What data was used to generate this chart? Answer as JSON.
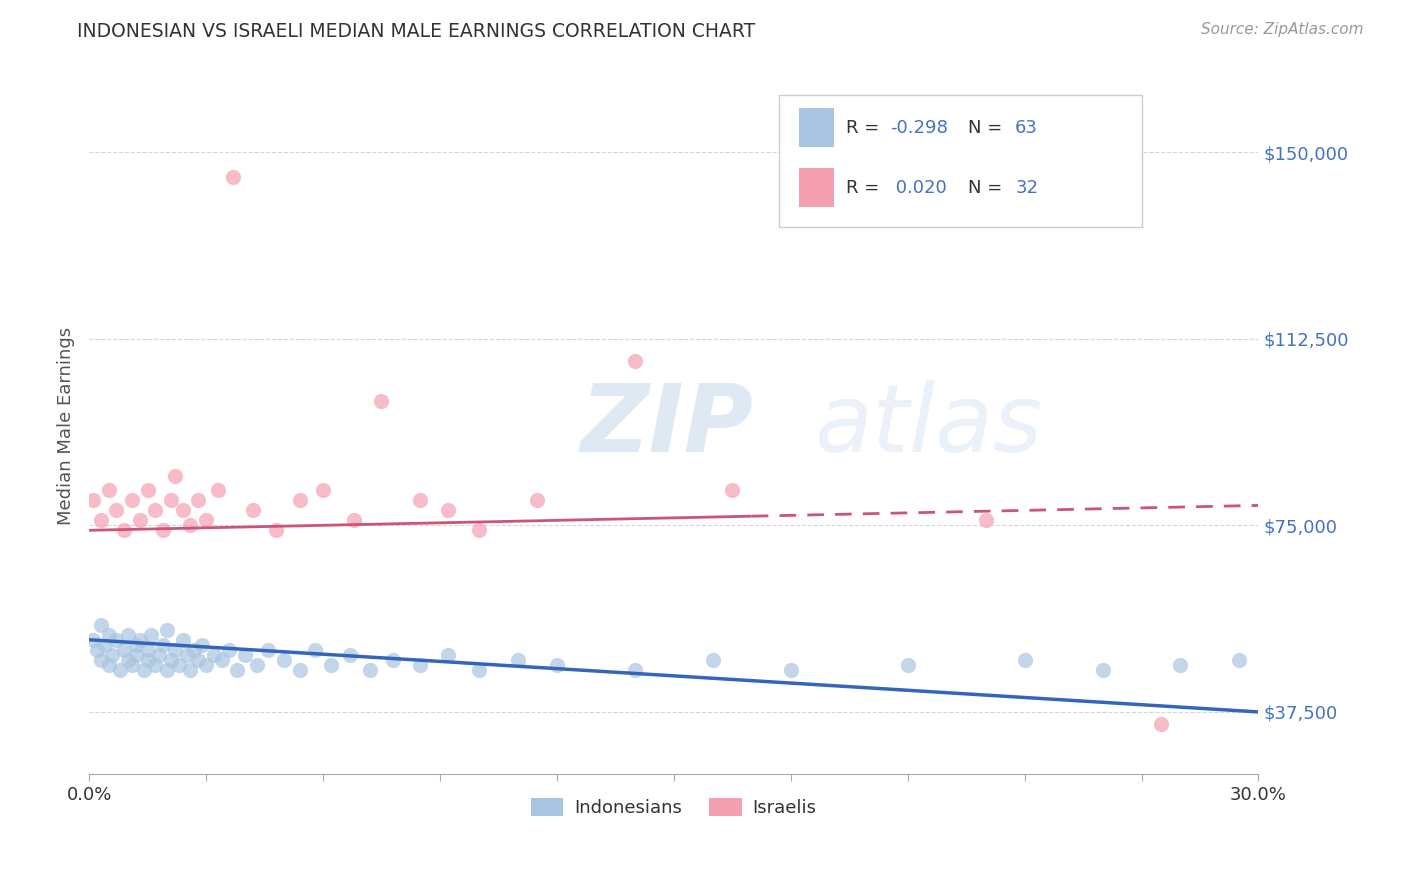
{
  "title": "INDONESIAN VS ISRAELI MEDIAN MALE EARNINGS CORRELATION CHART",
  "source": "Source: ZipAtlas.com",
  "ylabel": "Median Male Earnings",
  "xlim": [
    0.0,
    0.3
  ],
  "ylim": [
    25000,
    165000
  ],
  "yticks": [
    37500,
    75000,
    112500,
    150000
  ],
  "ytick_labels": [
    "$37,500",
    "$75,000",
    "$112,500",
    "$150,000"
  ],
  "xtick_positions": [
    0.0,
    0.03,
    0.06,
    0.09,
    0.12,
    0.15,
    0.18,
    0.21,
    0.24,
    0.27,
    0.3
  ],
  "xtick_labels_show": [
    "0.0%",
    "",
    "",
    "",
    "",
    "",
    "",
    "",
    "",
    "",
    "30.0%"
  ],
  "legend_r1_prefix": "R = ",
  "legend_r1_val": "-0.298",
  "legend_n1_prefix": "N = ",
  "legend_n1_val": "63",
  "legend_r2_prefix": "R = ",
  "legend_r2_val": "0.020",
  "legend_n2_prefix": "N = ",
  "legend_n2_val": "32",
  "legend_label1": "Indonesians",
  "legend_label2": "Israelis",
  "color_indonesian": "#a8c4e0",
  "color_israeli": "#f4a0b0",
  "line_color_indonesian": "#3366bb",
  "line_color_israeli": "#cc5577",
  "watermark_text": "ZIP",
  "watermark_text2": "atlas",
  "background_color": "#ffffff",
  "indo_line_y0": 52000,
  "indo_line_y1": 37500,
  "isr_line_y0": 74000,
  "isr_line_y1": 79000,
  "indonesian_x": [
    0.001,
    0.002,
    0.003,
    0.003,
    0.004,
    0.005,
    0.005,
    0.006,
    0.007,
    0.008,
    0.009,
    0.01,
    0.01,
    0.011,
    0.012,
    0.012,
    0.013,
    0.014,
    0.015,
    0.015,
    0.016,
    0.017,
    0.018,
    0.019,
    0.02,
    0.02,
    0.021,
    0.022,
    0.023,
    0.024,
    0.025,
    0.026,
    0.027,
    0.028,
    0.029,
    0.03,
    0.032,
    0.034,
    0.036,
    0.038,
    0.04,
    0.043,
    0.046,
    0.05,
    0.054,
    0.058,
    0.062,
    0.067,
    0.072,
    0.078,
    0.085,
    0.092,
    0.1,
    0.11,
    0.12,
    0.14,
    0.16,
    0.18,
    0.21,
    0.24,
    0.26,
    0.28,
    0.295
  ],
  "indonesian_y": [
    52000,
    50000,
    48000,
    55000,
    51000,
    47000,
    53000,
    49000,
    52000,
    46000,
    50000,
    48000,
    53000,
    47000,
    51000,
    49000,
    52000,
    46000,
    48000,
    50000,
    53000,
    47000,
    49000,
    51000,
    46000,
    54000,
    48000,
    50000,
    47000,
    52000,
    49000,
    46000,
    50000,
    48000,
    51000,
    47000,
    49000,
    48000,
    50000,
    46000,
    49000,
    47000,
    50000,
    48000,
    46000,
    50000,
    47000,
    49000,
    46000,
    48000,
    47000,
    49000,
    46000,
    48000,
    47000,
    46000,
    48000,
    46000,
    47000,
    48000,
    46000,
    47000,
    48000
  ],
  "israeli_x": [
    0.001,
    0.003,
    0.005,
    0.007,
    0.009,
    0.011,
    0.013,
    0.015,
    0.017,
    0.019,
    0.021,
    0.022,
    0.024,
    0.026,
    0.028,
    0.03,
    0.033,
    0.037,
    0.042,
    0.048,
    0.054,
    0.06,
    0.068,
    0.075,
    0.085,
    0.092,
    0.1,
    0.115,
    0.14,
    0.165,
    0.23,
    0.275
  ],
  "israeli_y": [
    80000,
    76000,
    82000,
    78000,
    74000,
    80000,
    76000,
    82000,
    78000,
    74000,
    80000,
    85000,
    78000,
    75000,
    80000,
    76000,
    82000,
    145000,
    78000,
    74000,
    80000,
    82000,
    76000,
    100000,
    80000,
    78000,
    74000,
    80000,
    108000,
    82000,
    76000,
    35000
  ]
}
